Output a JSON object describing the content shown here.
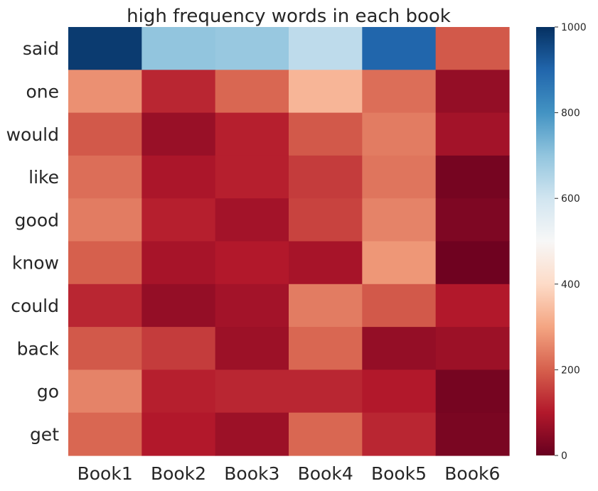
{
  "chart_data": {
    "type": "heatmap",
    "title": "high frequency words in each book",
    "rows": [
      "said",
      "one",
      "would",
      "like",
      "good",
      "know",
      "could",
      "back",
      "go",
      "get"
    ],
    "columns": [
      "Book1",
      "Book2",
      "Book3",
      "Book4",
      "Book5",
      "Book6"
    ],
    "values": [
      [
        980,
        700,
        690,
        630,
        900,
        190
      ],
      [
        270,
        120,
        210,
        330,
        220,
        60
      ],
      [
        190,
        65,
        110,
        190,
        240,
        80
      ],
      [
        220,
        90,
        110,
        150,
        230,
        20
      ],
      [
        240,
        110,
        80,
        160,
        250,
        30
      ],
      [
        200,
        85,
        100,
        85,
        280,
        10
      ],
      [
        120,
        60,
        80,
        240,
        190,
        100
      ],
      [
        190,
        150,
        70,
        210,
        60,
        70
      ],
      [
        250,
        110,
        120,
        120,
        100,
        20
      ],
      [
        210,
        100,
        70,
        210,
        120,
        25
      ]
    ],
    "colormap": "RdBu",
    "vmin": 0,
    "vmax": 1000,
    "colorbar_ticks": [
      "0",
      "200",
      "400",
      "600",
      "800",
      "1000"
    ],
    "legend": "colorbar-right"
  }
}
